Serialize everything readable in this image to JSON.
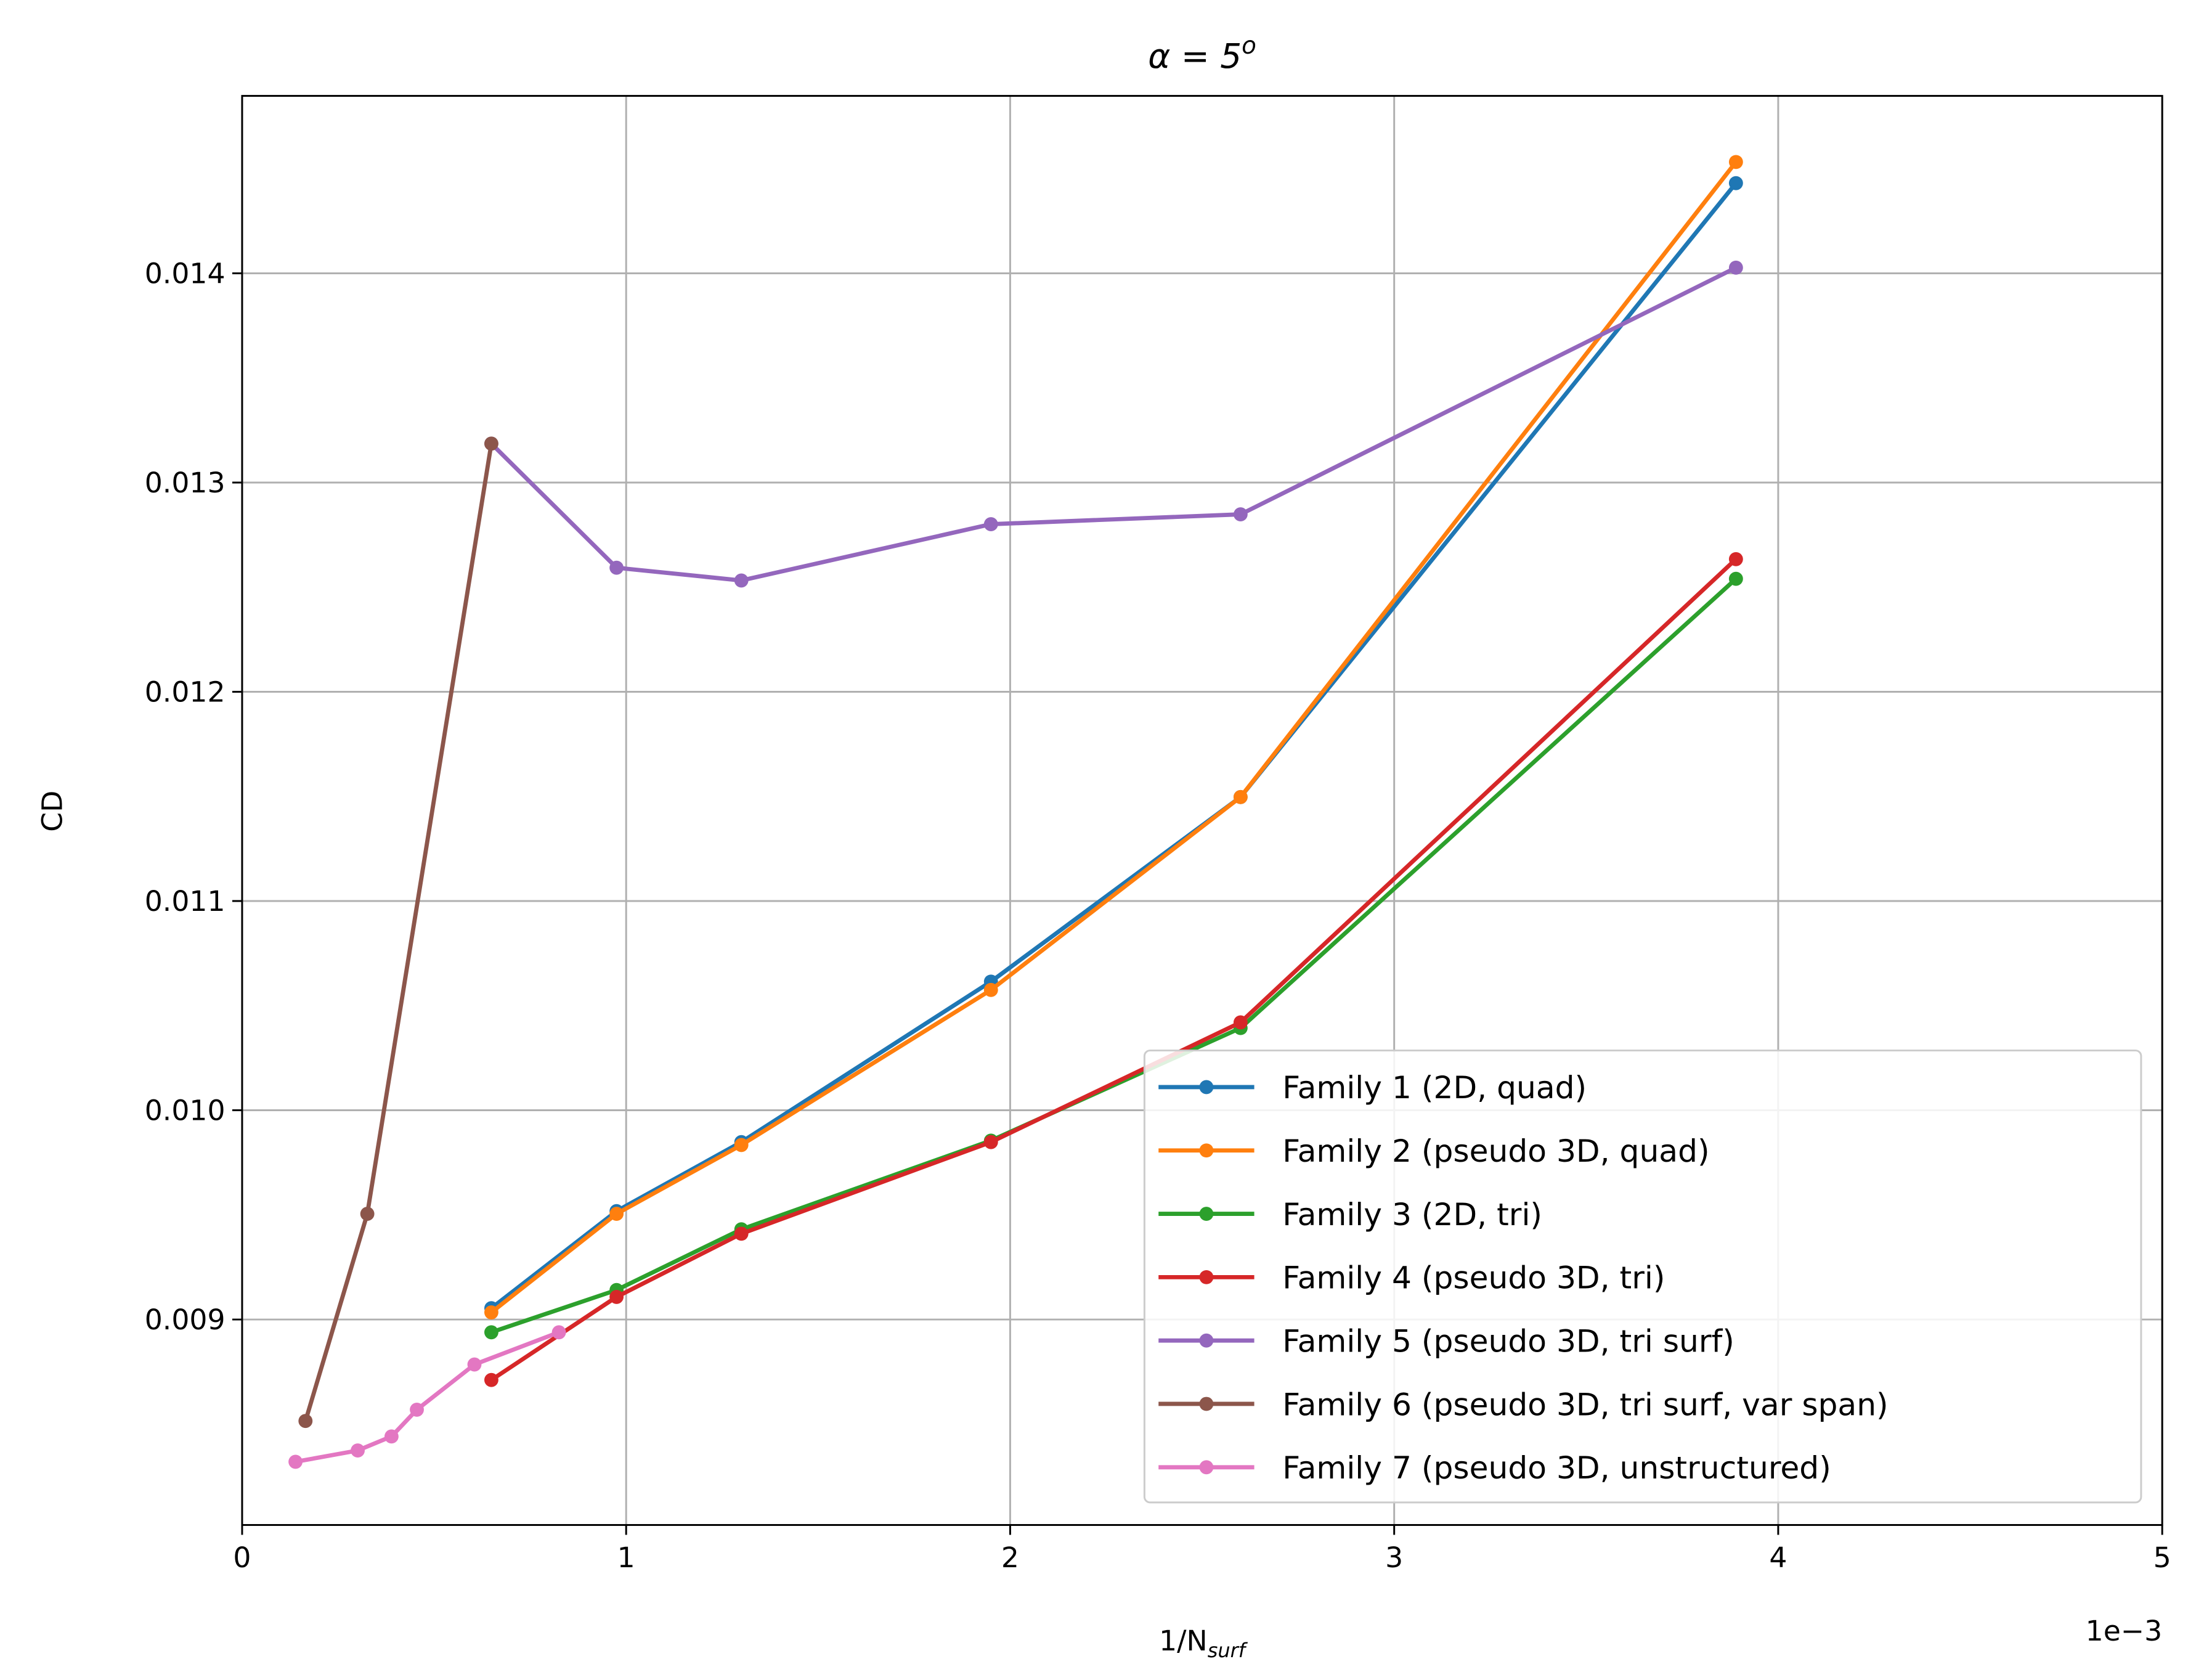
{
  "chart_data": {
    "type": "line",
    "title": "α = 5",
    "title_superscript": "o",
    "xlabel": "1/N",
    "xlabel_subscript": "surf",
    "ylabel": "CD",
    "x_offset_label": "1e−3",
    "xlim": [
      0,
      5
    ],
    "ylim": [
      0.008018,
      0.014848
    ],
    "x_ticks": [
      0,
      1,
      2,
      3,
      4,
      5
    ],
    "x_tick_labels": [
      "0",
      "1",
      "2",
      "3",
      "4",
      "5"
    ],
    "y_ticks": [
      0.009,
      0.01,
      0.011,
      0.012,
      0.013,
      0.014
    ],
    "y_tick_labels": [
      "0.009",
      "0.010",
      "0.011",
      "0.012",
      "0.013",
      "0.014"
    ],
    "grid": true,
    "legend_position": "lower-right",
    "series": [
      {
        "name": "Family 1 (2D, quad)",
        "color": "#1f77b4",
        "x": [
          0.649,
          0.975,
          1.3,
          1.95,
          2.6,
          3.89
        ],
        "y": [
          0.009054,
          0.009518,
          0.009848,
          0.010615,
          0.011497,
          0.014431
        ]
      },
      {
        "name": "Family 2 (pseudo 3D, quad)",
        "color": "#ff7f0e",
        "x": [
          0.649,
          0.975,
          1.3,
          1.95,
          2.6,
          3.89
        ],
        "y": [
          0.009034,
          0.009505,
          0.009834,
          0.010575,
          0.011497,
          0.014532
        ]
      },
      {
        "name": "Family 3 (2D, tri)",
        "color": "#2ca02c",
        "x": [
          0.649,
          0.975,
          1.3,
          1.95,
          2.6,
          3.89
        ],
        "y": [
          0.008939,
          0.009141,
          0.009431,
          0.009855,
          0.010393,
          0.01254
        ]
      },
      {
        "name": "Family 4 (pseudo 3D, tri)",
        "color": "#d62728",
        "x": [
          0.649,
          0.975,
          1.3,
          1.95,
          2.6,
          3.89
        ],
        "y": [
          0.008711,
          0.009108,
          0.00941,
          0.009848,
          0.01042,
          0.012634
        ]
      },
      {
        "name": "Family 5 (pseudo 3D, tri surf)",
        "color": "#9467bd",
        "x": [
          0.649,
          0.975,
          1.3,
          1.95,
          2.6,
          3.89
        ],
        "y": [
          0.013186,
          0.012593,
          0.012532,
          0.012801,
          0.012848,
          0.014027
        ]
      },
      {
        "name": "Family 6 (pseudo 3D, tri surf, var span)",
        "color": "#8c564b",
        "x": [
          0.165,
          0.326,
          0.649
        ],
        "y": [
          0.008515,
          0.009505,
          0.013186
        ]
      },
      {
        "name": "Family 7 (pseudo 3D, unstructured)",
        "color": "#e377c2",
        "x": [
          0.139,
          0.301,
          0.389,
          0.455,
          0.605,
          0.825
        ],
        "y": [
          0.00832,
          0.008374,
          0.008441,
          0.008569,
          0.008785,
          0.008939
        ]
      }
    ]
  }
}
